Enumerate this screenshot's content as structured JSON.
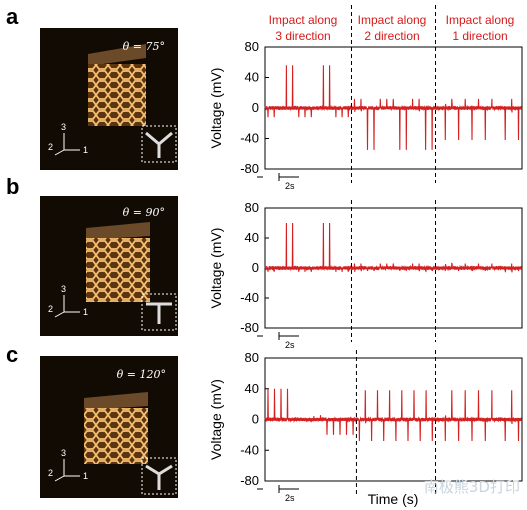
{
  "figure": {
    "xlabel": "Time (s)",
    "watermark": "南极熊3D打印",
    "scale_bar_label": "2s",
    "column_headers": [
      {
        "line1": "Impact along",
        "line2": "3 direction"
      },
      {
        "line1": "Impact along",
        "line2": "2 direction"
      },
      {
        "line1": "Impact along",
        "line2": "1 direction"
      }
    ],
    "photo_axis_labels": [
      "3",
      "2",
      "1"
    ]
  },
  "colors": {
    "signal": "#d42020",
    "header": "#d71a1a",
    "photo_bg": "#120b04",
    "lattice": "#f6b65e"
  },
  "chart_data": [
    {
      "type": "line",
      "panel": "a",
      "angle": "θ = 75°",
      "ylabel": "Voltage (mV)",
      "ylim": [
        -80,
        80
      ],
      "yticks": [
        80,
        40,
        0,
        -40,
        -80
      ],
      "xlim": [
        0,
        52
      ],
      "dividers": [
        17.5,
        34.5
      ],
      "segments": [
        {
          "direction": "3",
          "pulses": 14,
          "peak_max": 56,
          "peak_min": -12
        },
        {
          "direction": "2",
          "pulses": 13,
          "peak_max": 12,
          "peak_min": -55
        },
        {
          "direction": "1",
          "pulses": 13,
          "peak_max": 12,
          "peak_min": -42
        }
      ]
    },
    {
      "type": "line",
      "panel": "b",
      "angle": "θ = 90°",
      "ylabel": "Voltage (mV)",
      "ylim": [
        -80,
        80
      ],
      "yticks": [
        80,
        40,
        0,
        -40,
        -80
      ],
      "xlim": [
        0,
        52
      ],
      "dividers": [
        17.5,
        34.5
      ],
      "segments": [
        {
          "direction": "3",
          "pulses": 14,
          "peak_max": 60,
          "peak_min": -5
        },
        {
          "direction": "2",
          "pulses": 13,
          "peak_max": 6,
          "peak_min": -4
        },
        {
          "direction": "1",
          "pulses": 13,
          "peak_max": 6,
          "peak_min": -4
        }
      ]
    },
    {
      "type": "line",
      "panel": "c",
      "angle": "θ = 120°",
      "ylabel": "Voltage (mV)",
      "ylim": [
        -80,
        80
      ],
      "yticks": [
        80,
        40,
        0,
        -40,
        -80
      ],
      "xlim": [
        0,
        52
      ],
      "dividers": [
        18.5,
        34.5
      ],
      "segments": [
        {
          "direction": "3",
          "pulses": 14,
          "peak_max": 40,
          "peak_min": -20
        },
        {
          "direction": "2",
          "pulses": 13,
          "peak_max": 38,
          "peak_min": -28
        },
        {
          "direction": "1",
          "pulses": 13,
          "peak_max": 38,
          "peak_min": -28
        }
      ]
    }
  ]
}
